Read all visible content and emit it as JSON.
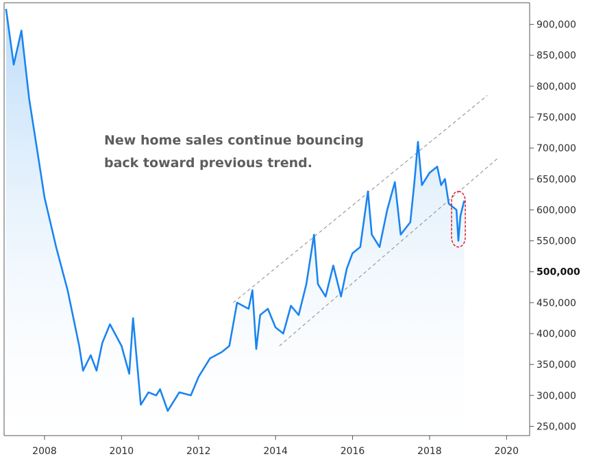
{
  "chart_data": {
    "type": "area",
    "series": [
      {
        "x": [
          2007.0,
          2007.2,
          2007.4,
          2007.6,
          2007.8,
          2008.0,
          2008.3,
          2008.6,
          2008.9,
          2009.0,
          2009.2,
          2009.35,
          2009.5,
          2009.7,
          2010.0,
          2010.2,
          2010.3,
          2010.5,
          2010.7,
          2010.9,
          2011.0,
          2011.2,
          2011.5,
          2011.8,
          2012.0,
          2012.3,
          2012.6,
          2012.8,
          2013.0,
          2013.3,
          2013.4,
          2013.5,
          2013.6,
          2013.8,
          2014.0,
          2014.2,
          2014.4,
          2014.6,
          2014.8,
          2015.0,
          2015.1,
          2015.3,
          2015.5,
          2015.7,
          2015.85,
          2016.0,
          2016.2,
          2016.4,
          2016.5,
          2016.7,
          2016.9,
          2017.1,
          2017.25,
          2017.5,
          2017.6,
          2017.7,
          2017.8,
          2017.9,
          2018.0,
          2018.2,
          2018.3,
          2018.4,
          2018.5,
          2018.6,
          2018.7,
          2018.75,
          2018.8,
          2018.9
        ],
        "y": [
          925000,
          835000,
          890000,
          780000,
          700000,
          620000,
          540000,
          470000,
          380000,
          340000,
          365000,
          340000,
          385000,
          415000,
          380000,
          335000,
          425000,
          285000,
          305000,
          300000,
          310000,
          275000,
          305000,
          300000,
          330000,
          360000,
          370000,
          380000,
          450000,
          440000,
          470000,
          375000,
          430000,
          440000,
          410000,
          400000,
          445000,
          430000,
          480000,
          560000,
          480000,
          460000,
          510000,
          460000,
          505000,
          530000,
          540000,
          630000,
          560000,
          540000,
          600000,
          645000,
          560000,
          580000,
          640000,
          710000,
          640000,
          650000,
          660000,
          670000,
          640000,
          650000,
          610000,
          605000,
          600000,
          550000,
          590000,
          615000
        ]
      }
    ],
    "y_ticks": [
      250000,
      300000,
      350000,
      400000,
      450000,
      500000,
      550000,
      600000,
      650000,
      700000,
      750000,
      800000,
      850000,
      900000
    ],
    "y_tick_labels": [
      "250,000",
      "300,000",
      "350,000",
      "400,000",
      "450,000",
      "500,000",
      "550,000",
      "600,000",
      "650,000",
      "700,000",
      "750,000",
      "800,000",
      "850,000",
      "900,000"
    ],
    "y_tick_emphasis": "500,000",
    "x_ticks": [
      2008,
      2010,
      2012,
      2014,
      2016,
      2018,
      2020
    ],
    "x_tick_labels": [
      "2008",
      "2010",
      "2012",
      "2014",
      "2016",
      "2018",
      "2020"
    ],
    "xlim": [
      2006.95,
      2020.6
    ],
    "ylim": [
      235000,
      935000
    ],
    "annotation": [
      "New home sales continue bouncing",
      "back toward previous trend."
    ],
    "trend_lines": [
      {
        "x": [
          2012.9,
          2019.5
        ],
        "y": [
          450000,
          785000
        ]
      },
      {
        "x": [
          2014.1,
          2019.8
        ],
        "y": [
          380000,
          685000
        ]
      }
    ],
    "highlight": {
      "x": 2018.75,
      "y_range": [
        540000,
        630000
      ]
    },
    "colors": {
      "line": "#1a84f0",
      "fill_top": "#bcdcf8",
      "fill_bottom": "#ffffff",
      "trend": "#888888",
      "highlight": "#e0202a",
      "axis": "#555555"
    }
  }
}
